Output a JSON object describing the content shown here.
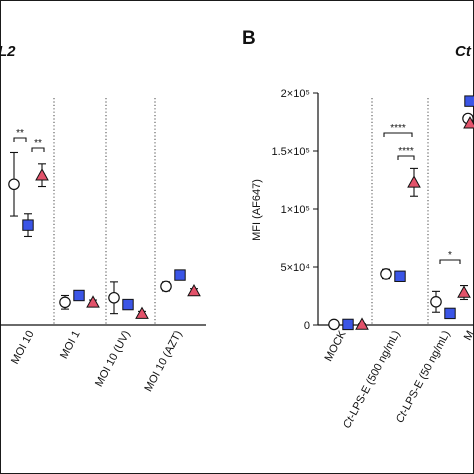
{
  "colors": {
    "circle": "#ffffff",
    "square": "#3b55e6",
    "triangle": "#e2526a",
    "stroke": "#111111"
  },
  "panelA": {
    "title_fragment": "L2",
    "categories": [
      "MOI 10",
      "MOI 1",
      "MOI 10 (UV)",
      "MOI 10 (AZT)"
    ],
    "significance": [
      "**",
      "**"
    ]
  },
  "panelB": {
    "letter": "B",
    "title_fragment": "Ct",
    "ylabel": "MFI (AF647)",
    "yticks": [
      "0",
      "5×10⁴",
      "1×10⁵",
      "1.5×10⁵",
      "2×10⁵"
    ],
    "categories_text": [
      "MOCK",
      "-LPS-E (500 ng/mL)",
      "-LPS-E (50 ng/mL)",
      "M"
    ],
    "categories_italic_prefix": [
      "",
      "Ct",
      "Ct",
      ""
    ],
    "significance": [
      "****",
      "****",
      "*"
    ]
  },
  "chart_data": [
    {
      "type": "scatter",
      "title": "",
      "xlabel": "",
      "ylabel": "",
      "categories": [
        "MOI 10",
        "MOI 1",
        "MOI 10 (UV)",
        "MOI 10 (AZT)"
      ],
      "series": [
        {
          "marker": "circle",
          "values": [
            0.62,
            0.1,
            0.12,
            0.17
          ],
          "err": [
            0.14,
            0.03,
            0.07,
            0.02
          ]
        },
        {
          "marker": "square",
          "values": [
            0.44,
            0.13,
            0.09,
            0.22
          ],
          "err": [
            0.05,
            0.02,
            0.02,
            0.01
          ]
        },
        {
          "marker": "triangle",
          "values": [
            0.66,
            0.1,
            0.05,
            0.15
          ],
          "err": [
            0.05,
            0.01,
            0.01,
            0.01
          ]
        }
      ]
    },
    {
      "type": "scatter",
      "title": "Ct",
      "xlabel": "",
      "ylabel": "MFI (AF647)",
      "ylim": [
        0,
        200000
      ],
      "categories": [
        "MOCK",
        "Ct-LPS-E (500 ng/mL)",
        "Ct-LPS-E (50 ng/mL)",
        "M"
      ],
      "series": [
        {
          "marker": "circle",
          "values": [
            500,
            44000,
            20000,
            178000
          ],
          "err": [
            500,
            4000,
            9000,
            0
          ]
        },
        {
          "marker": "square",
          "values": [
            500,
            42000,
            10000,
            193000
          ],
          "err": [
            500,
            3000,
            1000,
            0
          ]
        },
        {
          "marker": "triangle",
          "values": [
            500,
            123000,
            28000,
            174000
          ],
          "err": [
            500,
            12000,
            6000,
            0
          ]
        }
      ]
    }
  ]
}
